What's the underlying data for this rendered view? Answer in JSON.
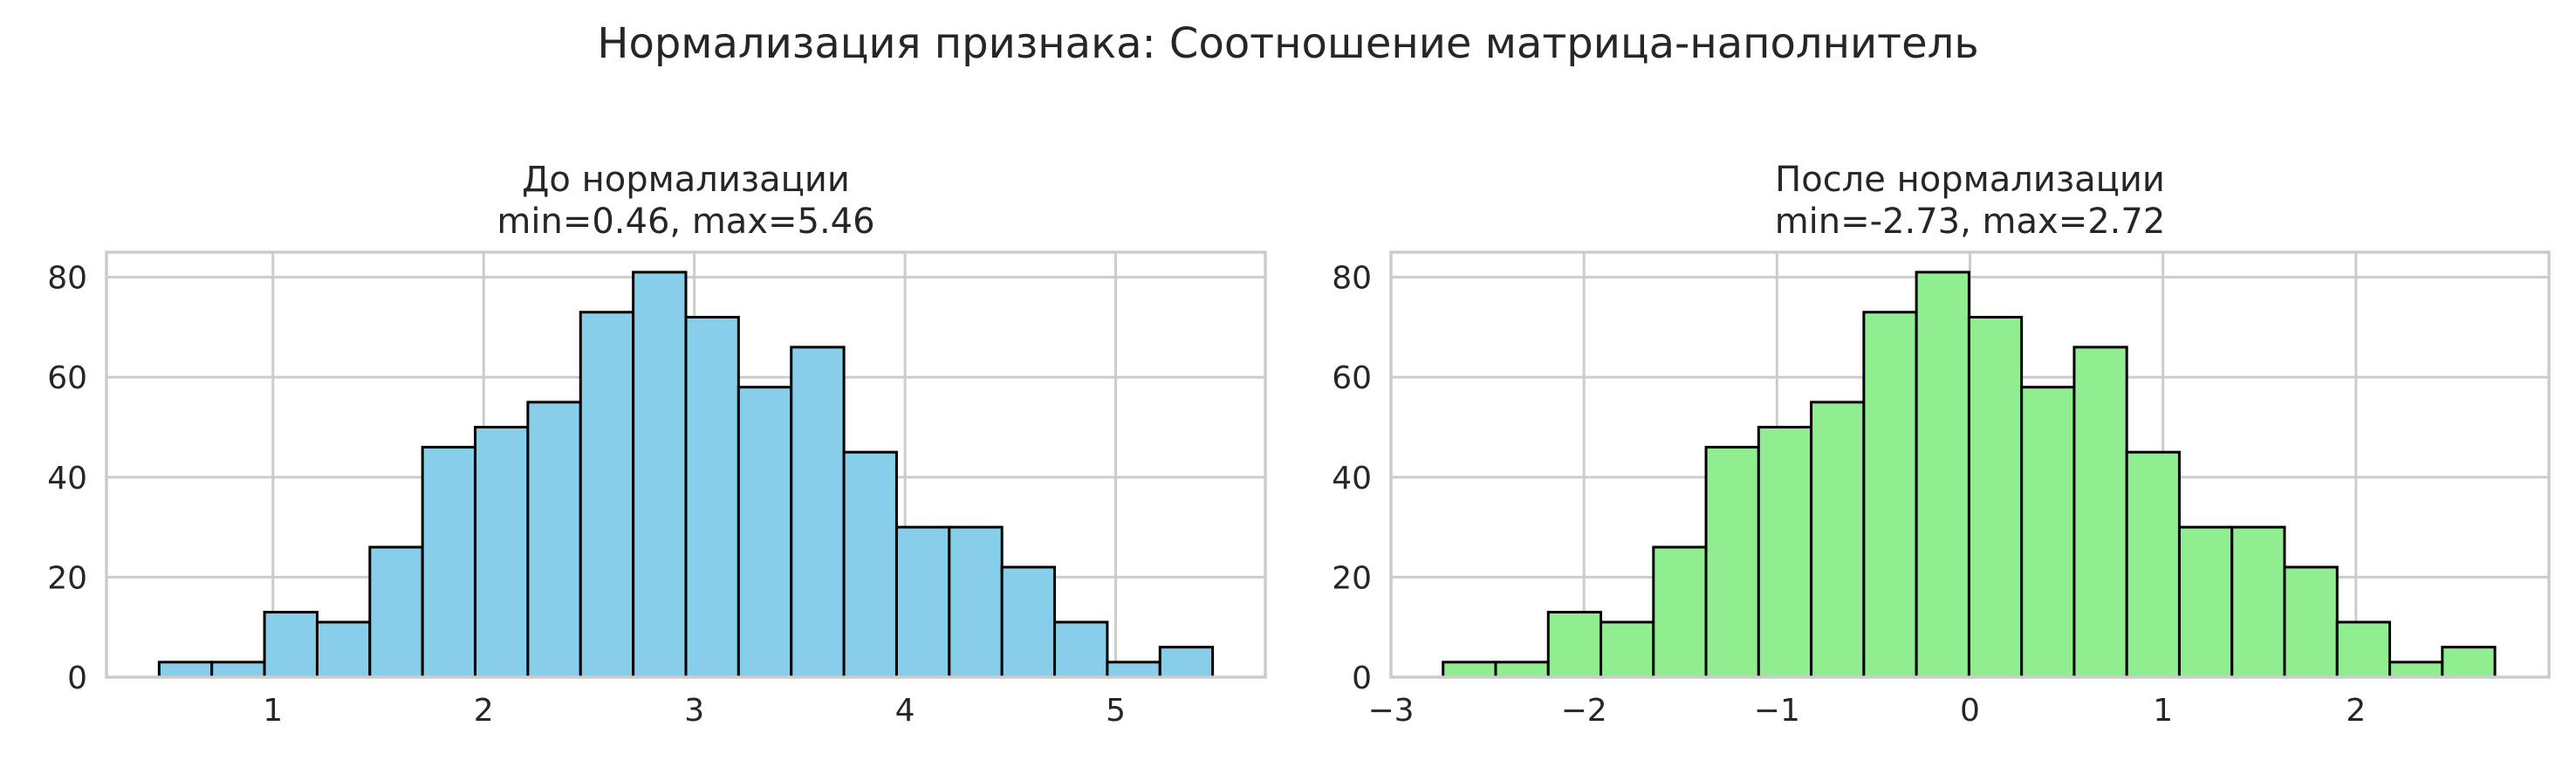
{
  "figure": {
    "suptitle": "Нормализация признака: Соотношение матрица-наполнитель"
  },
  "chart_data": [
    {
      "type": "bar",
      "title": "До нормализации",
      "subtitle": "min=0.46, max=5.46",
      "xlabel": "",
      "ylabel": "",
      "bar_color": "#87CEEB",
      "edge_color": "#000000",
      "grid": true,
      "xlim": [
        0.21,
        5.71
      ],
      "ylim": [
        0,
        85
      ],
      "xticks": [
        1,
        2,
        3,
        4,
        5
      ],
      "xtick_labels": [
        "1",
        "2",
        "3",
        "4",
        "5"
      ],
      "yticks": [
        0,
        20,
        40,
        60,
        80
      ],
      "ytick_labels": [
        "0",
        "20",
        "40",
        "60",
        "80"
      ],
      "bin_edges": [
        0.46,
        0.71,
        0.96,
        1.21,
        1.46,
        1.71,
        1.96,
        2.21,
        2.46,
        2.71,
        2.96,
        3.21,
        3.46,
        3.71,
        3.96,
        4.21,
        4.46,
        4.71,
        4.96,
        5.21,
        5.46
      ],
      "counts": [
        3,
        3,
        13,
        11,
        26,
        46,
        50,
        55,
        73,
        81,
        72,
        58,
        66,
        45,
        30,
        30,
        22,
        11,
        3,
        6
      ]
    },
    {
      "type": "bar",
      "title": "После нормализации",
      "subtitle": "min=-2.73, max=2.72",
      "xlabel": "",
      "ylabel": "",
      "bar_color": "#90EE90",
      "edge_color": "#000000",
      "grid": true,
      "xlim": [
        -3.0,
        3.0
      ],
      "ylim": [
        0,
        85
      ],
      "xticks": [
        -3,
        -2,
        -1,
        0,
        1,
        2
      ],
      "xtick_labels": [
        "−3",
        "−2",
        "−1",
        "0",
        "1",
        "2"
      ],
      "yticks": [
        0,
        20,
        40,
        60,
        80
      ],
      "ytick_labels": [
        "0",
        "20",
        "40",
        "60",
        "80"
      ],
      "bin_edges": [
        -2.73,
        -2.4575,
        -2.185,
        -1.9125,
        -1.64,
        -1.3675,
        -1.095,
        -0.8225,
        -0.55,
        -0.2775,
        -0.005,
        0.2675,
        0.54,
        0.8125,
        1.085,
        1.3575,
        1.63,
        1.9025,
        2.175,
        2.4475,
        2.72
      ],
      "counts": [
        3,
        3,
        13,
        11,
        26,
        46,
        50,
        55,
        73,
        81,
        72,
        58,
        66,
        45,
        30,
        30,
        22,
        11,
        3,
        6
      ]
    }
  ]
}
